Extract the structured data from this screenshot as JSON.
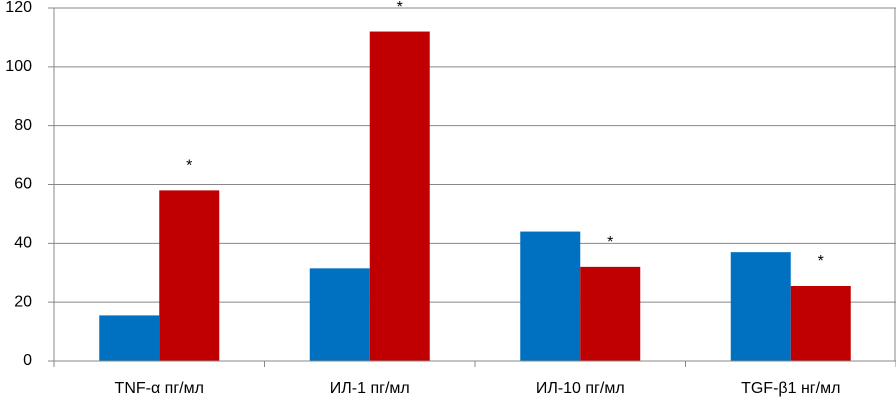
{
  "chart_data": {
    "type": "bar",
    "categories": [
      "TNF-α  пг/мл",
      "ИЛ-1 пг/мл",
      "ИЛ-10 пг/мл",
      "TGF-β1 нг/мл"
    ],
    "series": [
      {
        "color": "#0070c0",
        "values": [
          15.5,
          31.5,
          44,
          37
        ]
      },
      {
        "color": "#c00000",
        "values": [
          58,
          112,
          32,
          25.5
        ],
        "annotations": [
          "*",
          "*",
          "*",
          "*"
        ]
      }
    ],
    "ylim": [
      0,
      120
    ],
    "yticks": [
      0,
      20,
      40,
      60,
      80,
      100,
      120
    ],
    "grid": true
  }
}
